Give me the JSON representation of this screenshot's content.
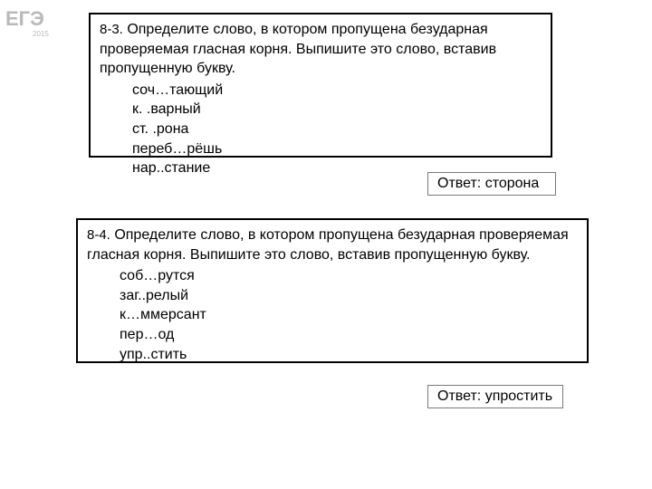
{
  "logo": {
    "text_main": "ЕГЭ",
    "text_year": "2015",
    "fill": "#b9b9b9"
  },
  "questions": [
    {
      "number": "8-3.",
      "instruction": "Определите слово, в котором пропущена безударная проверяемая гласная корня. Выпишите это слово, вставив пропущенную букву.",
      "options": [
        "соч…тающий",
        "к. .варный",
        "ст. .рона",
        "переб…рёшь",
        "нар..стание"
      ],
      "answer_label": "Ответ:",
      "answer_value": "сторона"
    },
    {
      "number": "8-4.",
      "instruction": "Определите слово, в котором пропущена безударная проверяемая гласная корня. Выпишите это слово, вставив пропущенную букву.",
      "options": [
        "соб…рутся",
        "заг..релый",
        "к…ммерсант",
        "пер…од",
        "упр..стить"
      ],
      "answer_label": "Ответ:",
      "answer_value": "упростить"
    }
  ],
  "style": {
    "page_bg": "#ffffff",
    "border_color": "#000000",
    "answer_border_color": "#7a7a7a",
    "text_color": "#000000",
    "font_size_body": 16,
    "font_size_num": 15
  }
}
